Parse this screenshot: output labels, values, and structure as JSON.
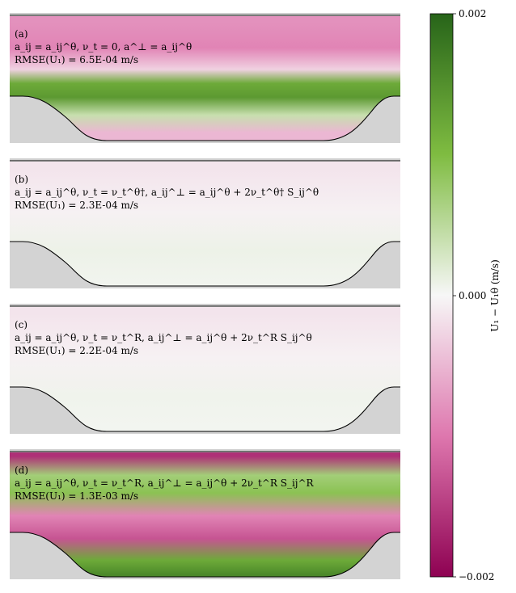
{
  "chart_data": {
    "type": "heatmap",
    "title": "",
    "panels": [
      {
        "tag": "(a)",
        "formula": "a_ij = a_ij^θ,  ν_t = 0,  a^⊥ = a_ij^θ",
        "rmse": "RMSE(U₁) = 6.5E-04 m/s",
        "field": [
          {
            "y": 0.95,
            "value": -0.0008
          },
          {
            "y": 0.75,
            "value": -0.0009
          },
          {
            "y": 0.58,
            "value": -0.0003
          },
          {
            "y": 0.47,
            "value": 0.0012
          },
          {
            "y": 0.36,
            "value": 0.0014
          },
          {
            "y": 0.22,
            "value": 0.0004
          },
          {
            "y": 0.08,
            "value": -0.0005
          }
        ]
      },
      {
        "tag": "(b)",
        "formula": "a_ij = a_ij^θ,  ν_t = ν_t^θ†,  a_ij^⊥ = a_ij^θ + 2ν_t^θ† S_ij^θ",
        "rmse": "RMSE(U₁) = 2.3E-04 m/s",
        "field": [
          {
            "y": 0.95,
            "value": -0.00015
          },
          {
            "y": 0.6,
            "value": -5e-05
          },
          {
            "y": 0.3,
            "value": 8e-05
          },
          {
            "y": 0.05,
            "value": 5e-05
          }
        ]
      },
      {
        "tag": "(c)",
        "formula": "a_ij = a_ij^θ,  ν_t = ν_t^R,  a_ij^⊥ = a_ij^θ + 2ν_t^R S_ij^θ",
        "rmse": "RMSE(U₁) = 2.2E-04 m/s",
        "field": [
          {
            "y": 0.95,
            "value": -0.00015
          },
          {
            "y": 0.6,
            "value": -5e-05
          },
          {
            "y": 0.3,
            "value": 6e-05
          },
          {
            "y": 0.05,
            "value": 4e-05
          }
        ]
      },
      {
        "tag": "(d)",
        "formula": "a_ij = a_ij^θ,  ν_t = ν_t^R,  a_ij^⊥ = a_ij^θ + 2ν_t^R S_ij^R",
        "rmse": "RMSE(U₁) = 1.3E-03 m/s",
        "field": [
          {
            "y": 0.97,
            "value": -0.0016
          },
          {
            "y": 0.82,
            "value": 0.0007
          },
          {
            "y": 0.68,
            "value": 0.0009
          },
          {
            "y": 0.5,
            "value": -0.0009
          },
          {
            "y": 0.32,
            "value": -0.0013
          },
          {
            "y": 0.15,
            "value": 0.0012
          },
          {
            "y": 0.03,
            "value": 0.0016
          }
        ]
      }
    ],
    "colorbar": {
      "label": "U₁ − U₁θ (m/s)",
      "range": [
        -0.002,
        0.002
      ],
      "ticks": [
        "0.002",
        "0.000",
        "−0.002"
      ],
      "colors": [
        "#8e0152",
        "#de77ae",
        "#f7f7f7",
        "#7fbc41",
        "#276419"
      ]
    }
  }
}
